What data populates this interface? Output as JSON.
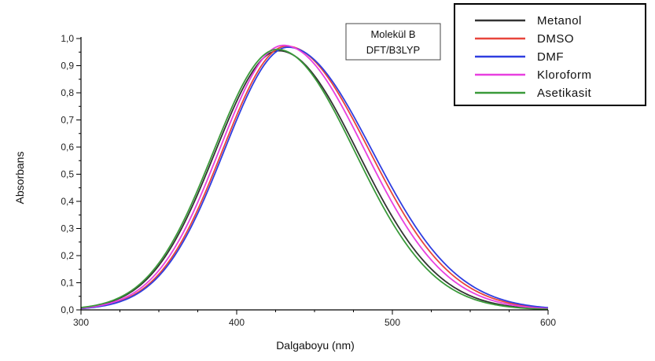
{
  "chart_data": {
    "type": "line",
    "xlabel": "Dalgaboyu (nm)",
    "ylabel": "Absorbans",
    "xlim": [
      300,
      600
    ],
    "ylim": [
      0,
      1.0
    ],
    "x_ticks": [
      "300",
      "400",
      "500",
      "600"
    ],
    "y_ticks": [
      "0,0",
      "0,1",
      "0,2",
      "0,3",
      "0,4",
      "0,5",
      "0,6",
      "0,7",
      "0,8",
      "0,9",
      "1,0"
    ],
    "annotation": [
      "Molekül B",
      "DFT/B3LYP"
    ],
    "legend_position": "top-right",
    "grid": false,
    "series": [
      {
        "name": "Metanol",
        "color": "#333333",
        "peak_x": 427,
        "peak_y": 0.955,
        "left_width": 41,
        "right_width": 51
      },
      {
        "name": "DMSO",
        "color": "#e8453c",
        "peak_x": 432,
        "peak_y": 0.972,
        "left_width": 41,
        "right_width": 53
      },
      {
        "name": "DMF",
        "color": "#2f3ee0",
        "peak_x": 433,
        "peak_y": 0.968,
        "left_width": 41,
        "right_width": 54
      },
      {
        "name": "Kloroform",
        "color": "#e83fe0",
        "peak_x": 430,
        "peak_y": 0.975,
        "left_width": 41,
        "right_width": 52
      },
      {
        "name": "Asetikasit",
        "color": "#3a9a3a",
        "peak_x": 426,
        "peak_y": 0.96,
        "left_width": 41,
        "right_width": 50
      }
    ]
  }
}
